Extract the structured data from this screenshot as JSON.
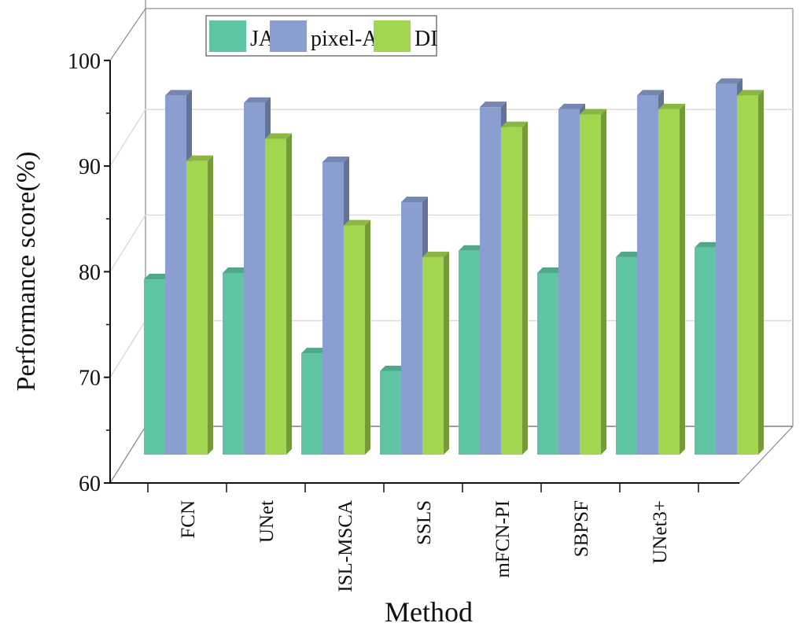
{
  "chart_data": {
    "type": "bar",
    "style": "3d-clustered",
    "title": "",
    "xlabel": "Method",
    "ylabel": "Performance score(%)",
    "ylim": [
      60,
      100
    ],
    "yticks": [
      "60",
      "70",
      "80",
      "90",
      "100"
    ],
    "grid": true,
    "legend_position": "top-center",
    "categories": [
      "FCN",
      "UNet",
      "ISL-MSCA",
      "SSLS",
      "mFCN-PI",
      "SBPSF",
      "UNet3+",
      ""
    ],
    "series": [
      {
        "name": "JA",
        "color": "#5ec4a3",
        "values": [
          76.6,
          77.2,
          69.6,
          67.9,
          79.3,
          77.2,
          78.7,
          79.6
        ]
      },
      {
        "name": "pixel-AC",
        "color": "#8a9fcf",
        "values": [
          94.0,
          93.3,
          87.7,
          83.9,
          92.9,
          92.7,
          94.0,
          95.1
        ]
      },
      {
        "name": "DI",
        "color": "#a3d64f",
        "values": [
          87.8,
          89.9,
          81.7,
          78.7,
          91.0,
          92.2,
          92.7,
          94.0
        ]
      }
    ]
  }
}
